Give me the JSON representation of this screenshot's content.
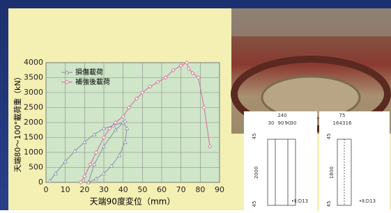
{
  "chart_data": {
    "type": "line",
    "xlabel": "天端90度変位（mm）",
    "ylabel": "天端80〜100°載荷重（kN）",
    "xlim": [
      0,
      90
    ],
    "ylim": [
      0,
      4000
    ],
    "xticks": [
      0,
      10,
      20,
      30,
      40,
      50,
      60,
      70,
      80,
      90
    ],
    "yticks": [
      0,
      500,
      1000,
      1500,
      2000,
      2500,
      3000,
      3500,
      4000
    ],
    "grid": true,
    "legend": "upper-left",
    "series": [
      {
        "name": "損傷載荷",
        "color": "#8c8ca8",
        "marker": "triangle",
        "x": [
          2,
          5,
          10,
          15,
          20,
          25,
          30,
          35,
          40,
          42,
          41,
          38,
          34,
          30,
          26,
          22,
          25,
          30,
          36,
          41
        ],
        "values": [
          50,
          300,
          700,
          1050,
          1350,
          1600,
          1800,
          1900,
          2000,
          1800,
          1350,
          900,
          550,
          300,
          120,
          0,
          600,
          1200,
          1750,
          2050
        ]
      },
      {
        "name": "補強後載荷",
        "color": "#d46a9a",
        "marker": "diamond",
        "x": [
          18,
          20,
          23,
          26,
          30,
          33,
          36,
          40,
          43,
          47,
          50,
          54,
          58,
          62,
          66,
          70,
          73,
          74,
          76,
          79,
          82,
          85
        ],
        "values": [
          0,
          200,
          600,
          1000,
          1500,
          1800,
          2000,
          2200,
          2500,
          2800,
          3000,
          3200,
          3350,
          3500,
          3750,
          3900,
          4000,
          3800,
          3650,
          3500,
          2500,
          1200
        ]
      }
    ]
  },
  "drawings": [
    {
      "labels": [
        "240",
        "30",
        "90",
        "90",
        "30",
        "45",
        "2000",
        "45",
        "•Ⅱ:D13"
      ]
    },
    {
      "labels": [
        "75",
        "16",
        "43",
        "16",
        "45",
        "1800",
        "45",
        "•Ⅱ:D13"
      ]
    }
  ]
}
